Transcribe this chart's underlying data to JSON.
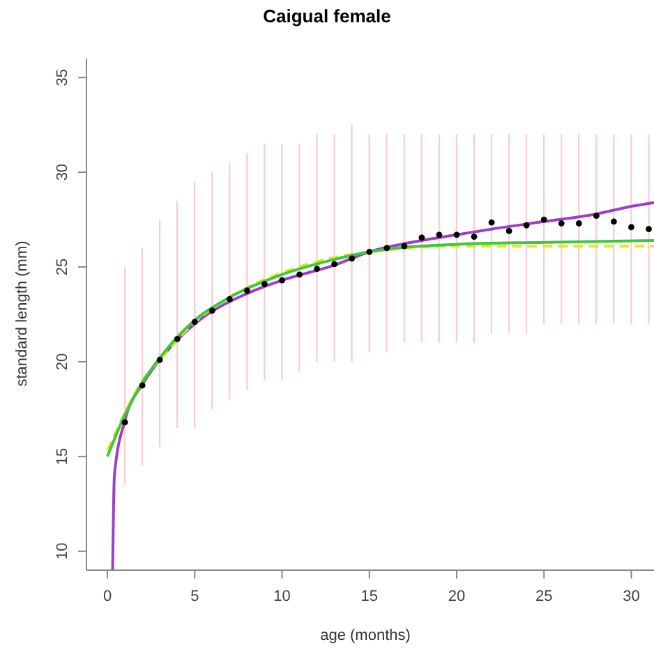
{
  "chart_data": {
    "type": "line",
    "title": "Caigual female",
    "xlabel": "age (months)",
    "ylabel": "standard length (mm)",
    "xlim": [
      -1.2,
      31.3
    ],
    "ylim": [
      9,
      36
    ],
    "xticks": [
      0,
      5,
      10,
      15,
      20,
      25,
      30
    ],
    "yticks": [
      10,
      15,
      20,
      25,
      30,
      35
    ],
    "grid": false,
    "legend": false,
    "series": [
      {
        "type": "bar",
        "color": "#f4a6a6",
        "x": [
          1,
          2,
          3,
          4,
          5,
          6,
          7,
          8,
          9,
          10,
          11,
          12,
          13,
          14,
          15,
          16,
          17,
          18,
          19,
          20,
          21,
          22,
          23,
          24,
          25,
          26,
          27,
          28,
          29,
          30,
          31
        ],
        "base": [
          13.5,
          14.5,
          15.5,
          16.5,
          16.5,
          17.5,
          18,
          18.5,
          19,
          19,
          19.5,
          20,
          20,
          20,
          20.5,
          20.5,
          21,
          21,
          21,
          21,
          21,
          21.5,
          21.5,
          21.5,
          22,
          22,
          22,
          22,
          22,
          22,
          22
        ],
        "values": [
          11.5,
          11.5,
          12,
          12,
          13,
          12.5,
          12.5,
          12.5,
          12.5,
          12.5,
          12,
          12,
          12,
          12.5,
          11.5,
          11.5,
          11,
          11,
          11,
          11,
          11,
          10.5,
          10.5,
          10.5,
          10,
          10,
          10,
          10,
          10,
          10,
          10
        ]
      },
      {
        "type": "scatter",
        "color": "#000000",
        "marker": "circle",
        "x": [
          1,
          2,
          3,
          4,
          5,
          6,
          7,
          8,
          9,
          10,
          11,
          12,
          13,
          14,
          15,
          16,
          17,
          18,
          19,
          20,
          21,
          22,
          23,
          24,
          25,
          26,
          27,
          28,
          29,
          30,
          31
        ],
        "values": [
          16.8,
          18.75,
          20.1,
          21.2,
          22.1,
          22.7,
          23.3,
          23.75,
          24.1,
          24.3,
          24.6,
          24.9,
          25.15,
          25.45,
          25.8,
          26.0,
          26.1,
          26.55,
          26.7,
          26.7,
          26.6,
          27.35,
          26.9,
          27.2,
          27.5,
          27.3,
          27.3,
          27.7,
          27.4,
          27.1,
          27.0
        ]
      },
      {
        "color": "#9b3fc8",
        "line_style": "solid",
        "x": [
          0.3,
          0.4,
          1,
          2,
          3,
          5,
          8,
          10,
          13,
          15,
          18,
          20,
          22,
          25,
          28,
          30,
          31.3
        ],
        "values": [
          9,
          14,
          16.9,
          18.8,
          20.1,
          22,
          23.6,
          24.3,
          25.1,
          25.8,
          26.4,
          26.7,
          27.0,
          27.4,
          27.8,
          28.2,
          28.4
        ]
      },
      {
        "color": "#e6e61e",
        "line_style": "dashed",
        "x": [
          0,
          1,
          2,
          3,
          5,
          7,
          10,
          13,
          15,
          20,
          25,
          31.3
        ],
        "values": [
          15.3,
          17.3,
          19.0,
          20.1,
          22.1,
          23.4,
          24.7,
          25.5,
          25.8,
          26.1,
          26.1,
          26.1
        ]
      },
      {
        "color": "#3cc83c",
        "line_style": "solid",
        "x": [
          0,
          1,
          2,
          3,
          5,
          7,
          10,
          13,
          15,
          20,
          25,
          31.3
        ],
        "values": [
          15,
          17.2,
          18.9,
          20.2,
          22.2,
          23.4,
          24.6,
          25.4,
          25.8,
          26.2,
          26.3,
          26.4
        ]
      }
    ]
  }
}
